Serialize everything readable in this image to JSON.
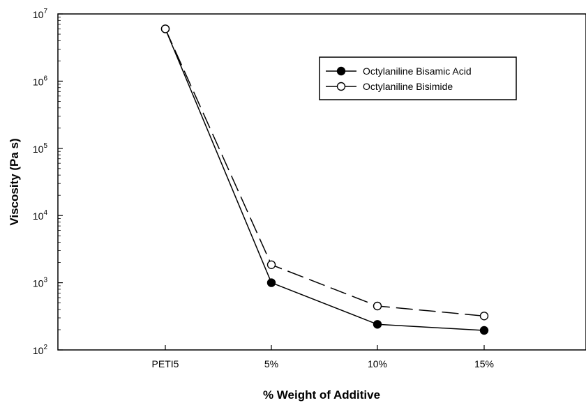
{
  "chart_data": {
    "type": "line",
    "title": "",
    "xlabel": "% Weight of Additive",
    "ylabel": "Viscosity (Pa s)",
    "y_scale": "log",
    "ylim": [
      100,
      10000000
    ],
    "y_ticks": [
      {
        "value": 100,
        "base": "10",
        "exp": "2"
      },
      {
        "value": 1000,
        "base": "10",
        "exp": "3"
      },
      {
        "value": 10000,
        "base": "10",
        "exp": "4"
      },
      {
        "value": 100000,
        "base": "10",
        "exp": "5"
      },
      {
        "value": 1000000,
        "base": "10",
        "exp": "6"
      },
      {
        "value": 10000000,
        "base": "10",
        "exp": "7"
      }
    ],
    "categories": [
      "PETI5",
      "5%",
      "10%",
      "15%"
    ],
    "grid": false,
    "legend_position": "top-right",
    "series": [
      {
        "name": "Octylaniline Bisamic Acid",
        "values": [
          6000000,
          1000,
          240,
          195
        ],
        "marker": "filled-circle",
        "line_style": "solid",
        "color": "#000000"
      },
      {
        "name": "Octylaniline Bisimide",
        "values": [
          6000000,
          1850,
          450,
          320
        ],
        "marker": "open-circle",
        "line_style": "dashed",
        "color": "#000000"
      }
    ]
  }
}
